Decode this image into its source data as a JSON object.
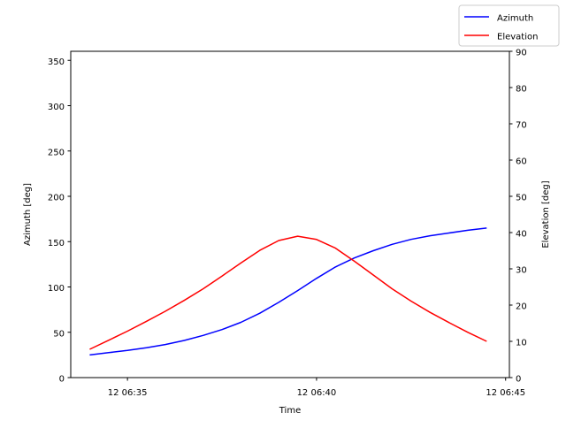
{
  "chart_data": {
    "type": "line",
    "title": "",
    "xlabel": "Time",
    "ylabel_left": "Azimuth [deg]",
    "ylabel_right": "Elevation [deg]",
    "x_unit": "minutes",
    "x_tick_labels": [
      "12 06:35",
      "12 06:40",
      "12 06:45"
    ],
    "x_ticks": [
      35,
      40,
      45
    ],
    "xlim": [
      33.5,
      45.1
    ],
    "ylim_left": [
      0,
      360
    ],
    "ylim_right": [
      0,
      90
    ],
    "yticks_left": [
      0,
      50,
      100,
      150,
      200,
      250,
      300,
      350
    ],
    "yticks_right": [
      0,
      10,
      20,
      30,
      40,
      50,
      60,
      70,
      80,
      90
    ],
    "legend_position": "top-right",
    "grid": false,
    "x": [
      "06:34:00",
      "06:34:30",
      "06:35:00",
      "06:35:30",
      "06:36:00",
      "06:36:30",
      "06:37:00",
      "06:37:30",
      "06:38:00",
      "06:38:30",
      "06:39:00",
      "06:39:30",
      "06:40:00",
      "06:40:30",
      "06:41:00",
      "06:41:30",
      "06:42:00",
      "06:42:30",
      "06:43:00",
      "06:43:30",
      "06:44:00",
      "06:44:30"
    ],
    "series": [
      {
        "name": "Azimuth",
        "axis": "left",
        "color": "#0000ff",
        "values": [
          25,
          27.5,
          30,
          33,
          36.5,
          41,
          46.5,
          53,
          61,
          71,
          83,
          96,
          109.5,
          122,
          132,
          140,
          147,
          152.5,
          156.5,
          159.5,
          162.5,
          165
        ]
      },
      {
        "name": "Elevation",
        "axis": "right",
        "color": "#ff0000",
        "values": [
          7.8,
          10.3,
          12.8,
          15.5,
          18.3,
          21.3,
          24.5,
          28,
          31.6,
          35.1,
          37.8,
          39,
          38.1,
          35.7,
          32.1,
          28.3,
          24.5,
          21.1,
          18,
          15.2,
          12.5,
          10
        ]
      }
    ]
  }
}
